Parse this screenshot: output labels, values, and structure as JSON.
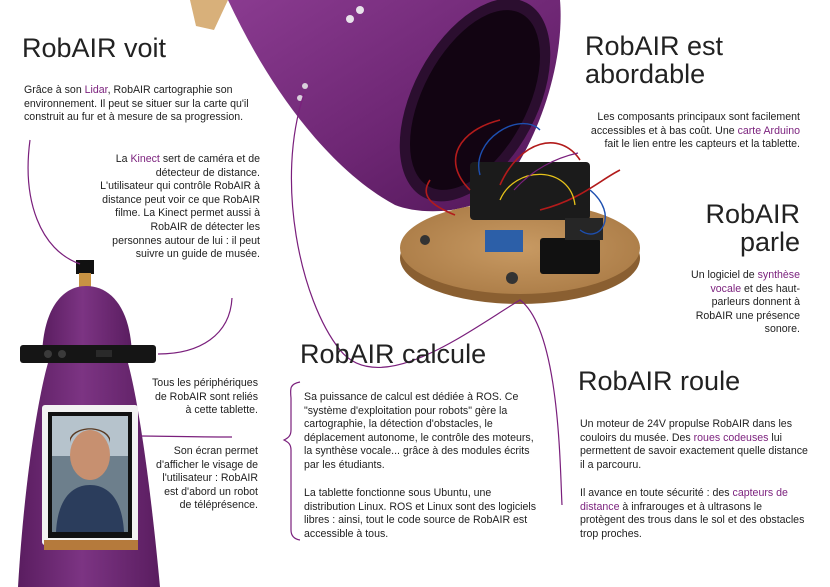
{
  "accent_color": "#7a1f7c",
  "body_color": "#6b2a6f",
  "sections": {
    "voit": {
      "title": "RobAIR voit",
      "p1": {
        "a": "Grâce à son ",
        "hl": "Lidar",
        "b": ", RobAIR cartographie  son environnement. Il peut se situer sur la carte qu'il construit au fur et à mesure de sa progression."
      },
      "p2": {
        "a": "La ",
        "hl": "Kinect",
        "b": " sert de caméra et de détecteur de distance. L'utilisateur qui contrôle RobAIR à distance peut voir ce que RobAIR filme. La Kinect permet aussi à RobAIR de détecter les personnes autour de lui : il peut suivre un guide de musée."
      }
    },
    "tablette": {
      "p1": "Tous les périphériques de RobAIR sont reliés à cette tablette.",
      "p2": "Son écran permet d'afficher le visage de l'utilisateur : RobAIR est d'abord un robot de téléprésence."
    },
    "abordable": {
      "title_line1": "RobAIR est",
      "title_line2": "abordable",
      "p1": {
        "a": "Les composants principaux sont facilement accessibles et à bas coût. Une ",
        "hl": "carte Arduino",
        "b": " fait le lien entre les capteurs et la tablette."
      }
    },
    "parle": {
      "title_line1": "RobAIR",
      "title_line2": "parle",
      "p1": {
        "a": "Un logiciel de ",
        "hl": "synthèse vocale",
        "b": " et des haut-parleurs donnent à RobAIR une présence sonore."
      }
    },
    "calcule": {
      "title": "RobAIR calcule",
      "p1": "Sa puissance de calcul est dédiée à ROS. Ce \"système d'exploitation pour robots\" gère la cartographie, la détection d'obstacles, le déplacement autonome, le contrôle des moteurs, la synthèse vocale... grâce à des modules écrits par les étudiants.",
      "p2": "La tablette fonctionne sous Ubuntu, une distribution Linux. ROS et Linux sont des logiciels libres : ainsi, tout le code source de RobAIR est accessible à tous."
    },
    "roule": {
      "title": "RobAIR roule",
      "p1": {
        "a": "Un moteur de 24V propulse RobAIR dans les couloirs du musée. Des ",
        "hl": "roues codeuses",
        "b": " lui permettent de savoir exactement quelle distance il a parcouru."
      },
      "p2": {
        "a": "Il avance en toute sécurité : des ",
        "hl": "capteurs de distance",
        "b": " à infrarouges et à ultrasons le protègent des trous dans le sol et des obstacles trop proches."
      }
    }
  }
}
